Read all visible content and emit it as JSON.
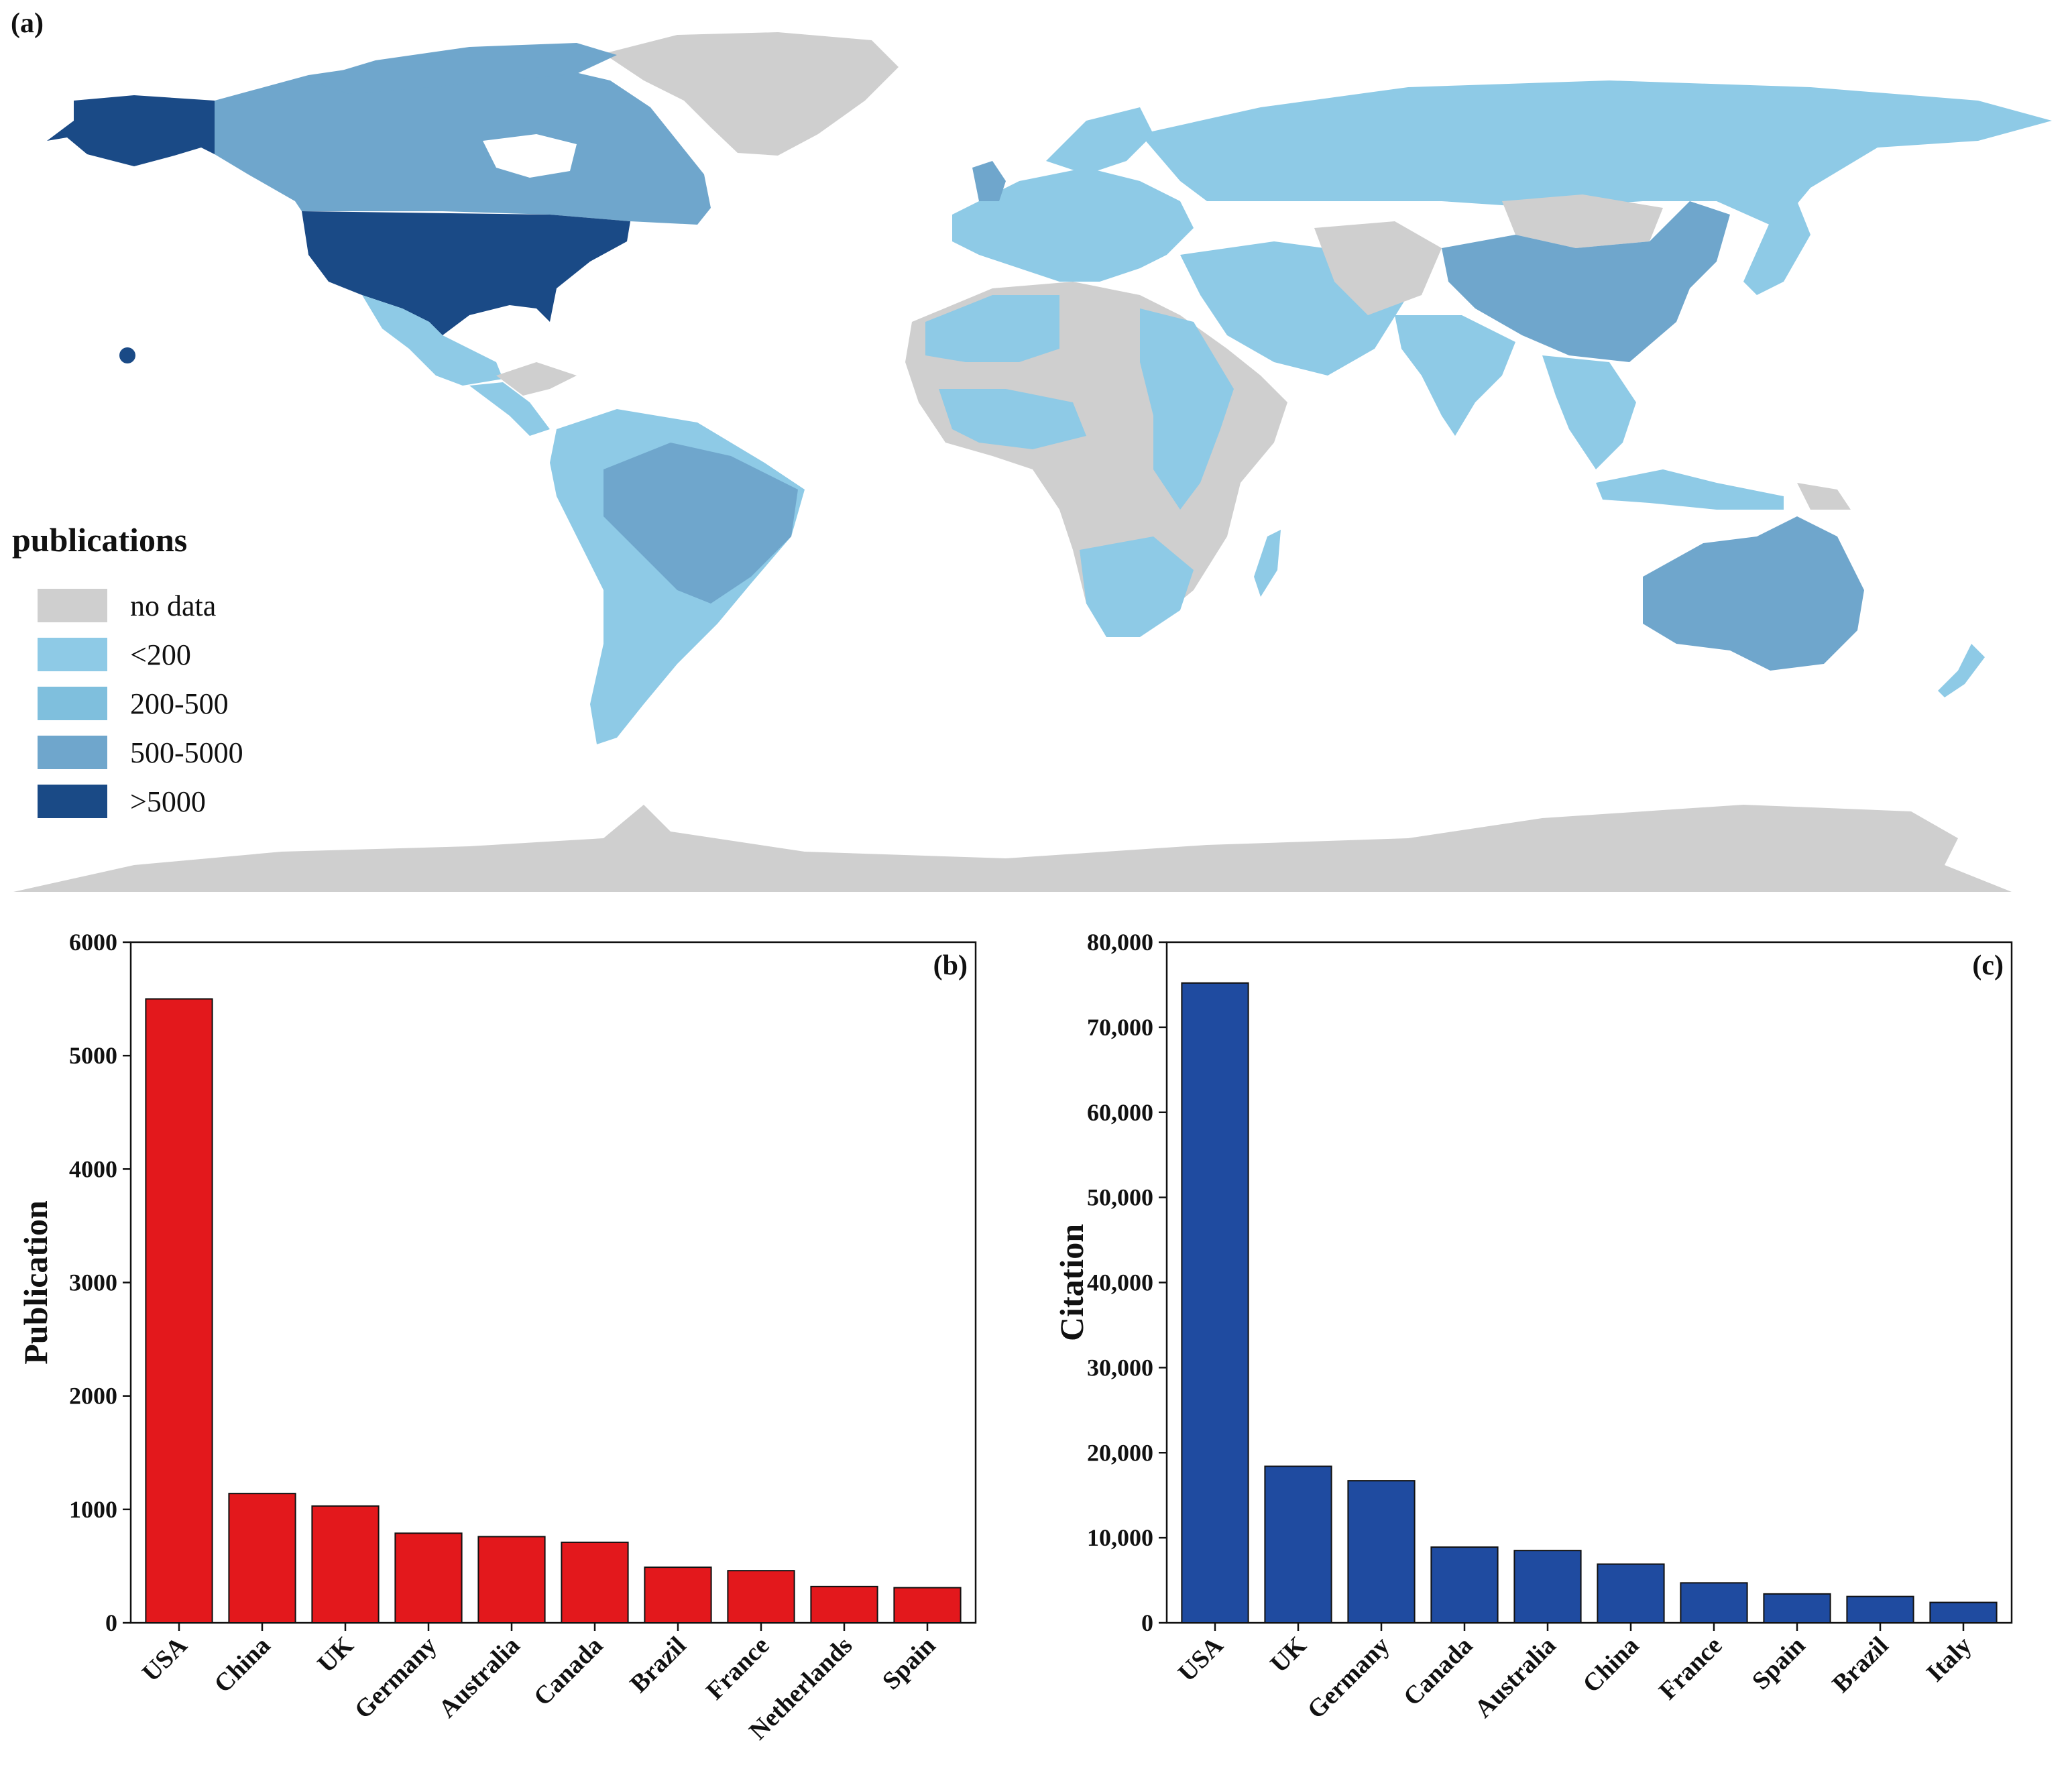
{
  "map": {
    "panel_label": "(a)",
    "legend": {
      "title": "publications",
      "items": [
        {
          "label": "no data",
          "color": "#cfcfcf"
        },
        {
          "label": "<200",
          "color": "#8ecae6"
        },
        {
          "label": "200-500",
          "color": "#7fbfdd"
        },
        {
          "label": "500-5000",
          "color": "#6fa6cc"
        },
        {
          "label": ">5000",
          "color": "#1a4a86"
        }
      ]
    }
  },
  "chart_data": [
    {
      "type": "bar",
      "panel_label": "(b)",
      "categories": [
        "USA",
        "China",
        "UK",
        "Germany",
        "Australia",
        "Canada",
        "Brazil",
        "France",
        "Netherlands",
        "Spain"
      ],
      "values": [
        5500,
        1140,
        1030,
        790,
        760,
        710,
        490,
        460,
        320,
        310
      ],
      "ylabel": "Publication",
      "xlabel": "",
      "ylim": [
        0,
        6000
      ],
      "yticks": [
        0,
        1000,
        2000,
        3000,
        4000,
        5000,
        6000
      ],
      "ytick_labels": [
        "0",
        "1000",
        "2000",
        "3000",
        "4000",
        "5000",
        "6000"
      ],
      "bar_color": "#e3181c",
      "grid": false
    },
    {
      "type": "bar",
      "panel_label": "(c)",
      "categories": [
        "USA",
        "UK",
        "Germany",
        "Canada",
        "Australia",
        "China",
        "France",
        "Spain",
        "Brazil",
        "Italy"
      ],
      "values": [
        75200,
        18400,
        16700,
        8900,
        8500,
        6900,
        4700,
        3400,
        3100,
        2400
      ],
      "ylabel": "Citation",
      "xlabel": "",
      "ylim": [
        0,
        80000
      ],
      "yticks": [
        0,
        10000,
        20000,
        30000,
        40000,
        50000,
        60000,
        70000,
        80000
      ],
      "ytick_labels": [
        "0",
        "10,000",
        "20,000",
        "30,000",
        "40,000",
        "50,000",
        "60,000",
        "70,000",
        "80,000"
      ],
      "bar_color": "#1f4ba0",
      "grid": false
    }
  ]
}
